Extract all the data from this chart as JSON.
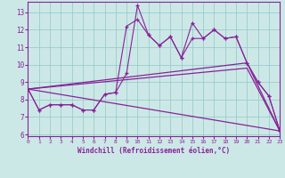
{
  "xlabel": "Windchill (Refroidissement éolien,°C)",
  "xlim": [
    0,
    23
  ],
  "ylim": [
    5.9,
    13.6
  ],
  "yticks": [
    6,
    7,
    8,
    9,
    10,
    11,
    12,
    13
  ],
  "xticks": [
    0,
    1,
    2,
    3,
    4,
    5,
    6,
    7,
    8,
    9,
    10,
    11,
    12,
    13,
    14,
    15,
    16,
    17,
    18,
    19,
    20,
    21,
    22,
    23
  ],
  "bg_color": "#cce8e6",
  "grid_color": "#99cccc",
  "line_color": "#882299",
  "line1_x": [
    0,
    1,
    2,
    3,
    4,
    5,
    6,
    7,
    8,
    9,
    10,
    11,
    12,
    13,
    14,
    15,
    16,
    17,
    18,
    19,
    20,
    21,
    22,
    23
  ],
  "line1_y": [
    8.6,
    7.4,
    7.7,
    7.7,
    7.7,
    7.4,
    7.4,
    8.3,
    8.4,
    12.2,
    12.6,
    11.7,
    11.1,
    11.6,
    10.4,
    12.4,
    11.5,
    12.0,
    11.5,
    11.6,
    10.1,
    9.0,
    8.2,
    6.2
  ],
  "line2_x": [
    0,
    1,
    2,
    3,
    4,
    5,
    6,
    7,
    8,
    9,
    10,
    11,
    12,
    13,
    14,
    15,
    16,
    17,
    18,
    19,
    20,
    21,
    22,
    23
  ],
  "line2_y": [
    8.6,
    7.4,
    7.7,
    7.7,
    7.7,
    7.4,
    7.4,
    8.3,
    8.4,
    9.5,
    13.4,
    11.7,
    11.1,
    11.6,
    10.4,
    11.5,
    11.5,
    12.0,
    11.5,
    11.6,
    10.1,
    9.0,
    8.2,
    6.2
  ],
  "line3_x": [
    0,
    23
  ],
  "line3_y": [
    8.6,
    6.2
  ],
  "line4_x": [
    0,
    20,
    23
  ],
  "line4_y": [
    8.6,
    10.1,
    6.2
  ],
  "line5_x": [
    0,
    20,
    23
  ],
  "line5_y": [
    8.6,
    9.8,
    6.2
  ]
}
